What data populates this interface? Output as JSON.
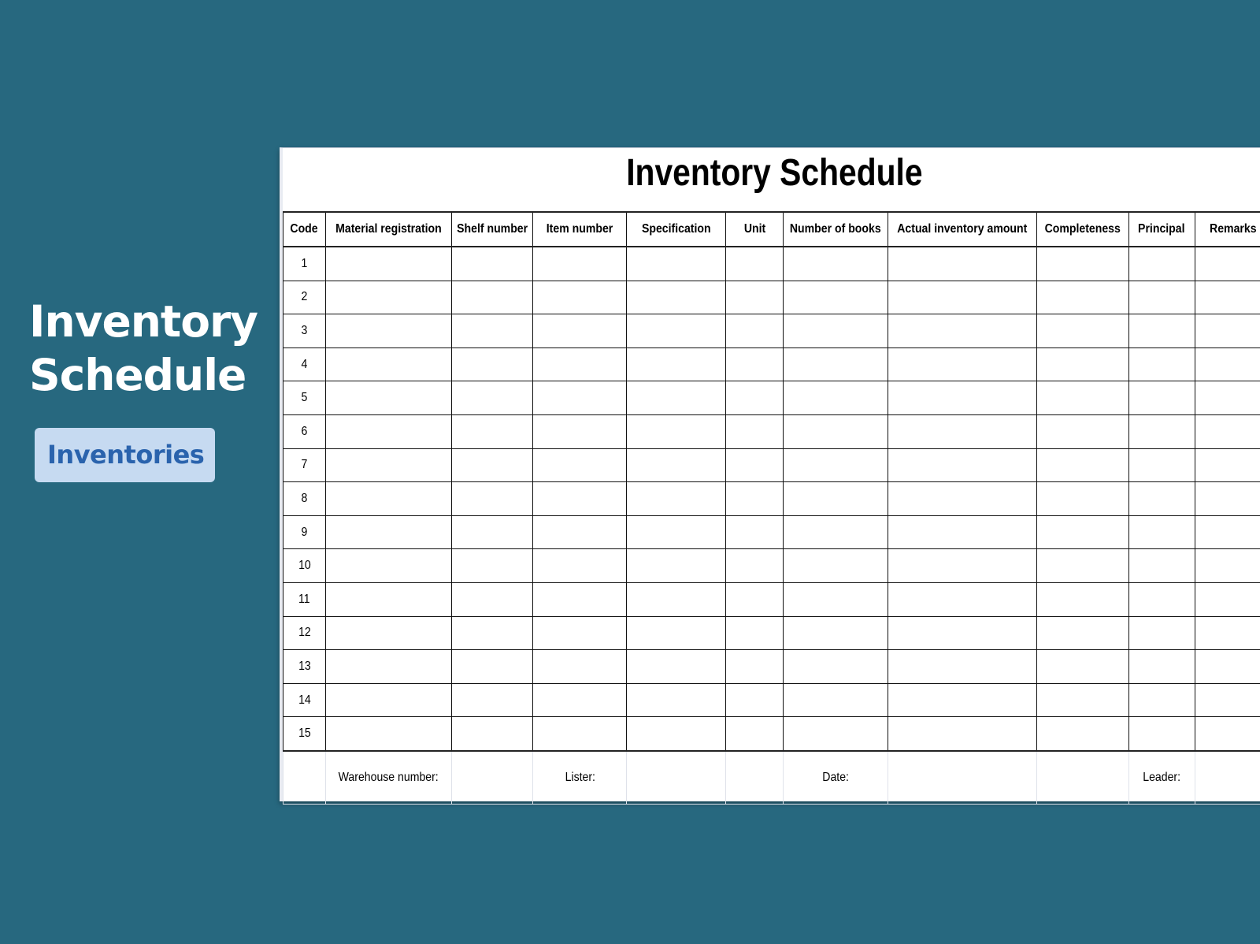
{
  "hero": {
    "title_line1": "Inventory",
    "title_line2": "Schedule",
    "badge": "Inventories"
  },
  "colors": {
    "background": "#27687f",
    "badge_bg": "#c6daf1",
    "badge_text": "#2a63ad"
  },
  "sheet": {
    "title": "Inventory Schedule",
    "columns": [
      "Code",
      "Material registration",
      "Shelf number",
      "Item number",
      "Specification",
      "Unit",
      "Number of books",
      "Actual inventory amount",
      "Completeness",
      "Principal",
      "Remarks"
    ],
    "rows": [
      "1",
      "2",
      "3",
      "4",
      "5",
      "6",
      "7",
      "8",
      "9",
      "10",
      "11",
      "12",
      "13",
      "14",
      "15"
    ],
    "footer": [
      "",
      "Warehouse number:",
      "",
      "Lister:",
      "",
      "",
      "Date:",
      "",
      "",
      "Leader:",
      ""
    ]
  }
}
